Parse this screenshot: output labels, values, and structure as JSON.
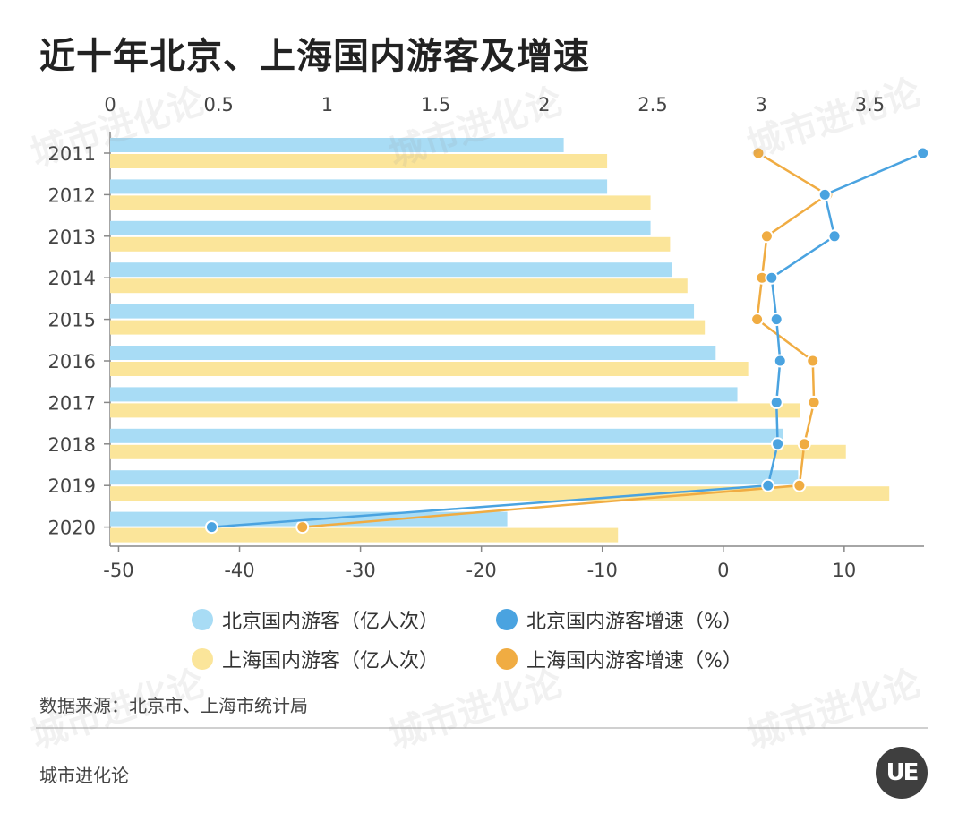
{
  "title": "近十年北京、上海国内游客及增速",
  "source": "数据来源：北京市、上海市统计局",
  "brand": "城市进化论",
  "logo_text": "UE",
  "watermark_text": "城市进化论",
  "colors": {
    "beijing_bar": "#a8dcf5",
    "shanghai_bar": "#fbe59a",
    "beijing_line": "#4aa3e0",
    "shanghai_line": "#f0ac42",
    "axis": "#888888"
  },
  "legend": [
    {
      "label": "北京国内游客（亿人次）",
      "color": "#a8dcf5"
    },
    {
      "label": "北京国内游客增速（%）",
      "color": "#4aa3e0"
    },
    {
      "label": "上海国内游客（亿人次）",
      "color": "#fbe59a"
    },
    {
      "label": "上海国内游客增速（%）",
      "color": "#f0ac42"
    }
  ],
  "chart_data": {
    "type": "bar",
    "orientation": "horizontal",
    "categories": [
      "2011",
      "2012",
      "2013",
      "2014",
      "2015",
      "2016",
      "2017",
      "2018",
      "2019",
      "2020"
    ],
    "top_axis": {
      "ticks": [
        "0",
        "0.5",
        "1",
        "1.5",
        "2",
        "2.5",
        "3",
        "3.5"
      ],
      "range": [
        0,
        3.75
      ]
    },
    "bottom_axis": {
      "ticks": [
        "-50",
        "-40",
        "-30",
        "-20",
        "-10",
        "0",
        "10"
      ],
      "range": [
        -50.7,
        16.6
      ]
    },
    "series": [
      {
        "name": "北京国内游客（亿人次）",
        "type": "bar",
        "axis": "top",
        "values": [
          2.09,
          2.29,
          2.49,
          2.59,
          2.69,
          2.79,
          2.89,
          3.1,
          3.17,
          1.83
        ]
      },
      {
        "name": "上海国内游客（亿人次）",
        "type": "bar",
        "axis": "top",
        "values": [
          2.29,
          2.49,
          2.58,
          2.66,
          2.74,
          2.94,
          3.18,
          3.39,
          3.59,
          2.34
        ]
      },
      {
        "name": "北京国内游客增速（%）",
        "type": "line",
        "axis": "bottom",
        "values": [
          16.5,
          8.4,
          9.2,
          4.0,
          4.4,
          4.7,
          4.4,
          4.5,
          3.7,
          -42.3
        ]
      },
      {
        "name": "上海国内游客增速（%）",
        "type": "line",
        "axis": "bottom",
        "values": [
          2.9,
          8.6,
          3.6,
          3.2,
          2.8,
          7.4,
          7.5,
          6.7,
          6.3,
          -34.8
        ]
      }
    ]
  }
}
